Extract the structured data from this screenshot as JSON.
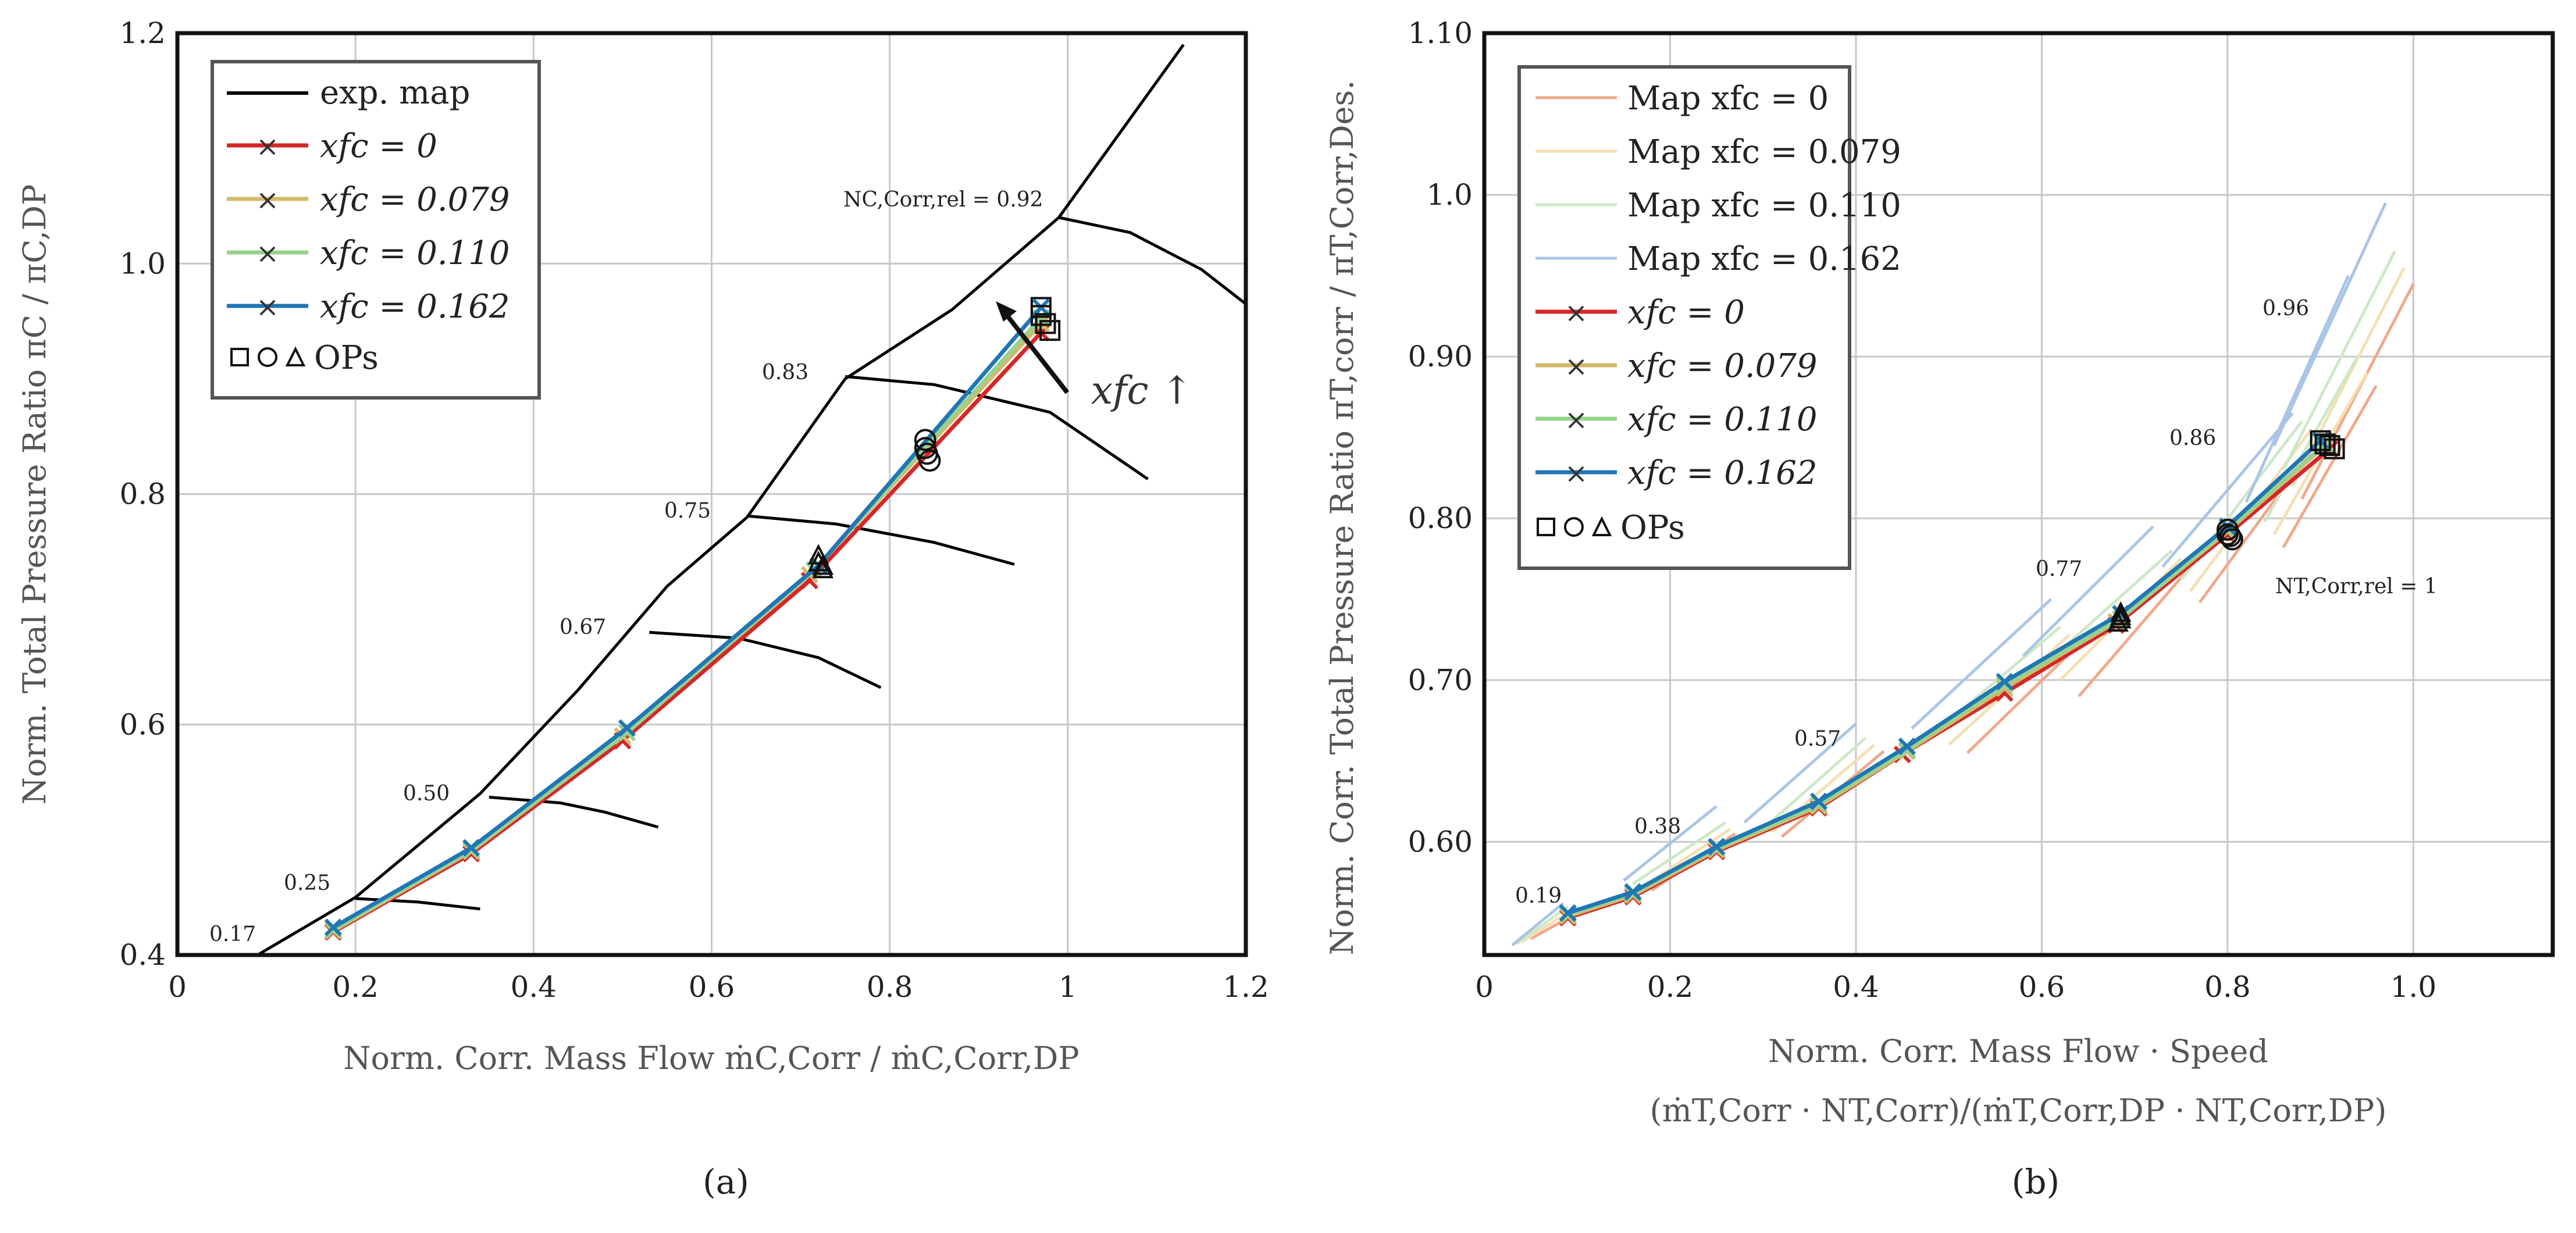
{
  "chart_data": [
    {
      "type": "line",
      "panel_label": "(a)",
      "xlabel": "Norm. Corr. Mass Flow ṁC,Corr / ṁC,Corr,DP",
      "ylabel": "Norm. Total Pressure Ratio πC / πC,DP",
      "xlim": [
        0,
        1.2
      ],
      "ylim": [
        0.4,
        1.2
      ],
      "xticks": [
        "0",
        "0.2",
        "0.4",
        "0.6",
        "0.8",
        "1",
        "1.2"
      ],
      "yticks": [
        "0.4",
        "0.6",
        "0.8",
        "1.0",
        "1.2"
      ],
      "grid": true,
      "legend_position": "top-left",
      "legend": [
        "exp. map",
        "xfc = 0",
        "xfc = 0.079",
        "xfc = 0.110",
        "xfc = 0.162",
        "OPs"
      ],
      "surge_line": {
        "name": "exp. map",
        "x": [
          0.09,
          0.2,
          0.34,
          0.45,
          0.55,
          0.64,
          0.75,
          0.87,
          0.99,
          1.13
        ],
        "y": [
          0.4,
          0.45,
          0.54,
          0.63,
          0.72,
          0.78,
          0.9,
          0.96,
          1.04,
          1.19
        ]
      },
      "speed_lines": [
        {
          "label": "0.17",
          "x": [
            0.09
          ],
          "y": [
            0.4
          ]
        },
        {
          "label": "0.25",
          "x": [
            0.2,
            0.27,
            0.34
          ],
          "y": [
            0.449,
            0.446,
            0.44
          ]
        },
        {
          "label": "0.50",
          "x": [
            0.35,
            0.43,
            0.48,
            0.54
          ],
          "y": [
            0.537,
            0.532,
            0.524,
            0.511
          ]
        },
        {
          "label": "0.67",
          "x": [
            0.53,
            0.63,
            0.72,
            0.79
          ],
          "y": [
            0.68,
            0.675,
            0.658,
            0.632
          ]
        },
        {
          "label": "0.75",
          "x": [
            0.64,
            0.74,
            0.85,
            0.94
          ],
          "y": [
            0.781,
            0.774,
            0.758,
            0.739
          ]
        },
        {
          "label": "0.83",
          "x": [
            0.75,
            0.85,
            0.98,
            1.09
          ],
          "y": [
            0.902,
            0.895,
            0.871,
            0.813
          ]
        },
        {
          "label": "NC,Corr,rel = 0.92",
          "x": [
            0.99,
            1.07,
            1.15,
            1.2
          ],
          "y": [
            1.04,
            1.027,
            0.995,
            0.965
          ]
        }
      ],
      "series": [
        {
          "name": "xfc = 0",
          "color": "#d62728",
          "x": [
            0.175,
            0.33,
            0.5,
            0.71,
            0.97
          ],
          "y": [
            0.42,
            0.488,
            0.586,
            0.725,
            0.94
          ]
        },
        {
          "name": "xfc = 0.079",
          "color": "#d4b96a",
          "x": [
            0.175,
            0.33,
            0.5,
            0.71,
            0.97
          ],
          "y": [
            0.421,
            0.49,
            0.59,
            0.73,
            0.948
          ]
        },
        {
          "name": "xfc = 0.110",
          "color": "#98d18f",
          "x": [
            0.175,
            0.33,
            0.505,
            0.715,
            0.97
          ],
          "y": [
            0.422,
            0.491,
            0.593,
            0.734,
            0.953
          ]
        },
        {
          "name": "xfc = 0.162",
          "color": "#1f77b4",
          "x": [
            0.175,
            0.33,
            0.505,
            0.72,
            0.97
          ],
          "y": [
            0.424,
            0.493,
            0.597,
            0.738,
            0.962
          ]
        }
      ],
      "operating_points": {
        "square": [
          [
            0.97,
            0.962
          ],
          [
            0.97,
            0.955
          ],
          [
            0.975,
            0.948
          ],
          [
            0.98,
            0.942
          ]
        ],
        "circle": [
          [
            0.84,
            0.847
          ],
          [
            0.84,
            0.84
          ],
          [
            0.842,
            0.835
          ],
          [
            0.845,
            0.829
          ]
        ],
        "triangle": [
          [
            0.72,
            0.746
          ],
          [
            0.72,
            0.74
          ],
          [
            0.725,
            0.737
          ],
          [
            0.725,
            0.734
          ]
        ]
      },
      "annotation": "xfc ↑"
    },
    {
      "type": "line",
      "panel_label": "(b)",
      "xlabel": "Norm. Corr. Mass Flow · Speed",
      "xlabel_line2": "(ṁT,Corr · NT,Corr)/(ṁT,Corr,DP · NT,Corr,DP)",
      "ylabel": "Norm. Corr. Total Pressure Ratio πT,corr / πT,Corr,Des.",
      "xlim": [
        0,
        1.15
      ],
      "ylim": [
        0.53,
        1.1
      ],
      "xticks": [
        "0",
        "0.2",
        "0.4",
        "0.6",
        "0.8",
        "1.0"
      ],
      "yticks": [
        "0.60",
        "0.70",
        "0.80",
        "0.90",
        "1.0",
        "1.10"
      ],
      "grid": true,
      "legend_position": "top-left",
      "legend": [
        "Map xfc = 0",
        "Map xfc = 0.079",
        "Map xfc = 0.110",
        "Map xfc = 0.162",
        "xfc = 0",
        "xfc = 0.079",
        "xfc = 0.110",
        "xfc = 0.162",
        "OPs"
      ],
      "speed_labels": [
        "0.19",
        "0.38",
        "0.57",
        "0.77",
        "0.86",
        "0.96",
        "NT,Corr,rel = 1"
      ],
      "map_lines": [
        {
          "name": "Map xfc = 0",
          "color": "#f0a98a",
          "lines": [
            {
              "x": [
                0.05,
                0.1
              ],
              "y": [
                0.54,
                0.556
              ]
            },
            {
              "x": [
                0.18,
                0.27
              ],
              "y": [
                0.57,
                0.605
              ]
            },
            {
              "x": [
                0.32,
                0.43
              ],
              "y": [
                0.603,
                0.656
              ]
            },
            {
              "x": [
                0.52,
                0.64
              ],
              "y": [
                0.655,
                0.722
              ]
            },
            {
              "x": [
                0.64,
                0.76
              ],
              "y": [
                0.69,
                0.77
              ]
            },
            {
              "x": [
                0.77,
                0.9
              ],
              "y": [
                0.748,
                0.85
              ]
            },
            {
              "x": [
                0.86,
                0.96
              ],
              "y": [
                0.782,
                0.882
              ]
            },
            {
              "x": [
                0.88,
                1.0
              ],
              "y": [
                0.812,
                0.945
              ]
            }
          ]
        },
        {
          "name": "Map xfc = 0.079",
          "color": "#f5dfb3",
          "lines": [
            {
              "x": [
                0.04,
                0.095
              ],
              "y": [
                0.538,
                0.558
              ]
            },
            {
              "x": [
                0.17,
                0.265
              ],
              "y": [
                0.572,
                0.608
              ]
            },
            {
              "x": [
                0.31,
                0.42
              ],
              "y": [
                0.606,
                0.66
              ]
            },
            {
              "x": [
                0.5,
                0.63
              ],
              "y": [
                0.66,
                0.728
              ]
            },
            {
              "x": [
                0.62,
                0.75
              ],
              "y": [
                0.7,
                0.775
              ]
            },
            {
              "x": [
                0.76,
                0.89
              ],
              "y": [
                0.755,
                0.855
              ]
            },
            {
              "x": [
                0.85,
                0.95
              ],
              "y": [
                0.79,
                0.89
              ]
            },
            {
              "x": [
                0.87,
                0.99
              ],
              "y": [
                0.82,
                0.955
              ]
            }
          ]
        },
        {
          "name": "Map xfc = 0.110",
          "color": "#cde8c6",
          "lines": [
            {
              "x": [
                0.035,
                0.09
              ],
              "y": [
                0.537,
                0.56
              ]
            },
            {
              "x": [
                0.16,
                0.26
              ],
              "y": [
                0.574,
                0.612
              ]
            },
            {
              "x": [
                0.3,
                0.41
              ],
              "y": [
                0.608,
                0.664
              ]
            },
            {
              "x": [
                0.48,
                0.62
              ],
              "y": [
                0.665,
                0.733
              ]
            },
            {
              "x": [
                0.6,
                0.74
              ],
              "y": [
                0.708,
                0.78
              ]
            },
            {
              "x": [
                0.75,
                0.88
              ],
              "y": [
                0.762,
                0.86
              ]
            },
            {
              "x": [
                0.84,
                0.94
              ],
              "y": [
                0.798,
                0.9
              ]
            },
            {
              "x": [
                0.86,
                0.98
              ],
              "y": [
                0.83,
                0.965
              ]
            }
          ]
        },
        {
          "name": "Map xfc = 0.162",
          "color": "#a9c5e6",
          "lines": [
            {
              "x": [
                0.03,
                0.085
              ],
              "y": [
                0.536,
                0.562
              ]
            },
            {
              "x": [
                0.15,
                0.25
              ],
              "y": [
                0.576,
                0.622
              ]
            },
            {
              "x": [
                0.28,
                0.4
              ],
              "y": [
                0.612,
                0.673
              ]
            },
            {
              "x": [
                0.46,
                0.61
              ],
              "y": [
                0.67,
                0.75
              ]
            },
            {
              "x": [
                0.58,
                0.72
              ],
              "y": [
                0.715,
                0.795
              ]
            },
            {
              "x": [
                0.73,
                0.87
              ],
              "y": [
                0.77,
                0.865
              ]
            },
            {
              "x": [
                0.82,
                0.93
              ],
              "y": [
                0.81,
                0.95
              ]
            },
            {
              "x": [
                0.85,
                0.97
              ],
              "y": [
                0.845,
                0.995
              ]
            }
          ]
        }
      ],
      "series": [
        {
          "name": "xfc = 0",
          "color": "#d62728",
          "x": [
            0.09,
            0.16,
            0.25,
            0.36,
            0.45,
            0.56,
            0.68,
            0.8,
            0.91
          ],
          "y": [
            0.553,
            0.566,
            0.594,
            0.621,
            0.654,
            0.692,
            0.734,
            0.79,
            0.843
          ]
        },
        {
          "name": "xfc = 0.079",
          "color": "#d4b96a",
          "x": [
            0.09,
            0.16,
            0.25,
            0.36,
            0.455,
            0.56,
            0.68,
            0.8,
            0.905
          ],
          "y": [
            0.554,
            0.567,
            0.595,
            0.622,
            0.656,
            0.695,
            0.736,
            0.792,
            0.845
          ]
        },
        {
          "name": "xfc = 0.110",
          "color": "#98d18f",
          "x": [
            0.09,
            0.16,
            0.25,
            0.36,
            0.455,
            0.56,
            0.685,
            0.8,
            0.905
          ],
          "y": [
            0.555,
            0.568,
            0.596,
            0.623,
            0.657,
            0.697,
            0.738,
            0.793,
            0.846
          ]
        },
        {
          "name": "xfc = 0.162",
          "color": "#1f77b4",
          "x": [
            0.09,
            0.16,
            0.25,
            0.36,
            0.455,
            0.56,
            0.685,
            0.8,
            0.9
          ],
          "y": [
            0.556,
            0.569,
            0.597,
            0.625,
            0.659,
            0.699,
            0.741,
            0.795,
            0.848
          ]
        }
      ],
      "operating_points": {
        "square": [
          [
            0.9,
            0.848
          ],
          [
            0.905,
            0.846
          ],
          [
            0.91,
            0.845
          ],
          [
            0.915,
            0.843
          ]
        ],
        "circle": [
          [
            0.8,
            0.793
          ],
          [
            0.8,
            0.79
          ],
          [
            0.803,
            0.789
          ],
          [
            0.805,
            0.787
          ]
        ],
        "triangle": [
          [
            0.685,
            0.741
          ],
          [
            0.685,
            0.739
          ],
          [
            0.685,
            0.737
          ],
          [
            0.682,
            0.735
          ]
        ]
      }
    }
  ]
}
